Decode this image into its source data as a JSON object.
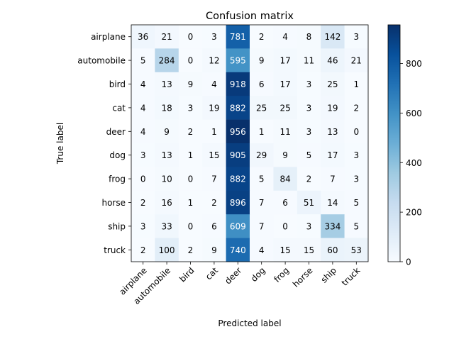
{
  "chart_data": {
    "type": "heatmap",
    "title": "Confusion matrix",
    "xlabel": "Predicted label",
    "ylabel": "True label",
    "x_categories": [
      "airplane",
      "automobile",
      "bird",
      "cat",
      "deer",
      "dog",
      "frog",
      "horse",
      "ship",
      "truck"
    ],
    "y_categories": [
      "airplane",
      "automobile",
      "bird",
      "cat",
      "deer",
      "dog",
      "frog",
      "horse",
      "ship",
      "truck"
    ],
    "matrix": [
      [
        36,
        21,
        0,
        3,
        781,
        2,
        4,
        8,
        142,
        3
      ],
      [
        5,
        284,
        0,
        12,
        595,
        9,
        17,
        11,
        46,
        21
      ],
      [
        4,
        13,
        9,
        4,
        918,
        6,
        17,
        3,
        25,
        1
      ],
      [
        4,
        18,
        3,
        19,
        882,
        25,
        25,
        3,
        19,
        2
      ],
      [
        4,
        9,
        2,
        1,
        956,
        1,
        11,
        3,
        13,
        0
      ],
      [
        3,
        13,
        1,
        15,
        905,
        29,
        9,
        5,
        17,
        3
      ],
      [
        0,
        10,
        0,
        7,
        882,
        5,
        84,
        2,
        7,
        3
      ],
      [
        2,
        16,
        1,
        2,
        896,
        7,
        6,
        51,
        14,
        5
      ],
      [
        3,
        33,
        0,
        6,
        609,
        7,
        0,
        3,
        334,
        5
      ],
      [
        2,
        100,
        2,
        9,
        740,
        4,
        15,
        15,
        60,
        53
      ]
    ],
    "colormap": "Blues",
    "vmin": 0,
    "vmax": 956,
    "colorbar_ticks": [
      0,
      200,
      400,
      600,
      800
    ],
    "grid": false,
    "x_tick_rotation": 45
  }
}
